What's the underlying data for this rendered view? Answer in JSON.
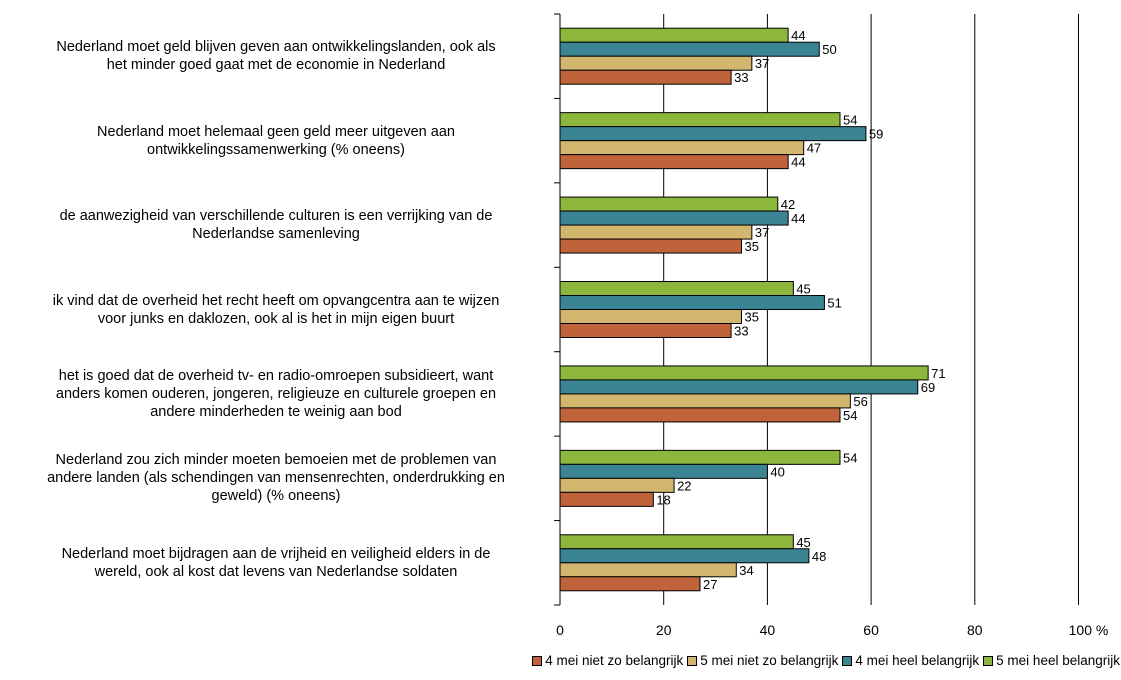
{
  "chart_data": {
    "type": "bar",
    "orientation": "horizontal",
    "categories": [
      "Nederland moet geld blijven geven aan ontwikkelingslanden, ook als het minder goed gaat met de economie in Nederland",
      "Nederland moet helemaal geen geld meer uitgeven aan ontwikkelingssamenwerking (% oneens)",
      "de aanwezigheid van verschillende culturen is een verrijking van de Nederlandse samenleving",
      "ik vind dat de overheid het recht heeft om opvangcentra aan te wijzen voor junks en daklozen, ook al is het in mijn eigen buurt",
      "het is goed dat de overheid tv- en radio-omroepen subsidieert, want anders komen ouderen, jongeren, religieuze en culturele groepen en andere minderheden te weinig aan bod",
      "Nederland zou zich minder moeten bemoeien met de problemen van andere landen (als schendingen van mensenrechten, onderdrukking en geweld) (% oneens)",
      "Nederland moet bijdragen aan de vrijheid en veiligheid elders in de wereld, ook al kost dat levens van Nederlandse soldaten"
    ],
    "category_lines": [
      [
        "Nederland moet geld blijven geven aan ontwikkelingslanden, ook als",
        "het minder goed gaat met de economie in Nederland"
      ],
      [
        "Nederland moet helemaal geen geld meer uitgeven aan",
        "ontwikkelingssamenwerking (% oneens)"
      ],
      [
        "de aanwezigheid van verschillende culturen is een verrijking van de",
        "Nederlandse samenleving"
      ],
      [
        "ik vind dat de overheid het recht heeft om opvangcentra aan te wijzen",
        "voor junks en daklozen, ook al is het in mijn eigen buurt"
      ],
      [
        "het is goed dat de overheid tv- en radio-omroepen subsidieert, want",
        "anders komen ouderen, jongeren, religieuze en culturele groepen en",
        "andere minderheden te weinig aan bod"
      ],
      [
        "Nederland zou zich minder moeten bemoeien met de problemen van",
        "andere landen (als schendingen van mensenrechten, onderdrukking en",
        "geweld) (% oneens)"
      ],
      [
        "Nederland moet bijdragen aan de vrijheid en veiligheid elders in de",
        "wereld, ook al kost dat levens van Nederlandse soldaten"
      ]
    ],
    "series": [
      {
        "name": "5 mei heel belangrijk",
        "color": "#8db63c",
        "values": [
          44,
          54,
          42,
          45,
          71,
          54,
          45
        ]
      },
      {
        "name": "4 mei heel belangrijk",
        "color": "#3b8494",
        "values": [
          50,
          59,
          44,
          51,
          69,
          40,
          48
        ]
      },
      {
        "name": "5 mei niet zo belangrijk",
        "color": "#d2b66e",
        "values": [
          37,
          47,
          37,
          35,
          56,
          22,
          34
        ]
      },
      {
        "name": "4 mei niet zo belangrijk",
        "color": "#c0633a",
        "values": [
          33,
          44,
          35,
          33,
          54,
          18,
          27
        ]
      }
    ],
    "xlim": [
      0,
      100
    ],
    "x_ticks": [
      "0",
      "20",
      "40",
      "60",
      "80",
      "100 %"
    ],
    "legend_order": [
      "4 mei niet zo belangrijk",
      "5 mei niet zo belangrijk",
      "4 mei heel belangrijk",
      "5 mei heel belangrijk"
    ],
    "legend_position": "bottom",
    "grid": "vertical"
  }
}
